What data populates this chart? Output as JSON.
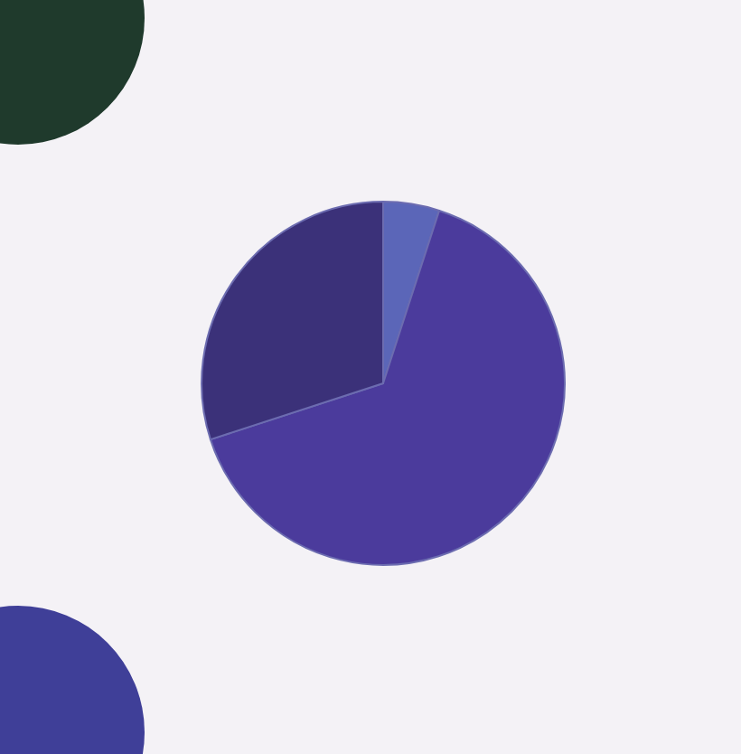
{
  "chart_data": {
    "type": "pie",
    "categories": [
      null,
      null,
      null
    ],
    "values": [
      5,
      65,
      30
    ],
    "colors": [
      "#5b66b8",
      "#4b3b9c",
      "#3b3179"
    ]
  }
}
